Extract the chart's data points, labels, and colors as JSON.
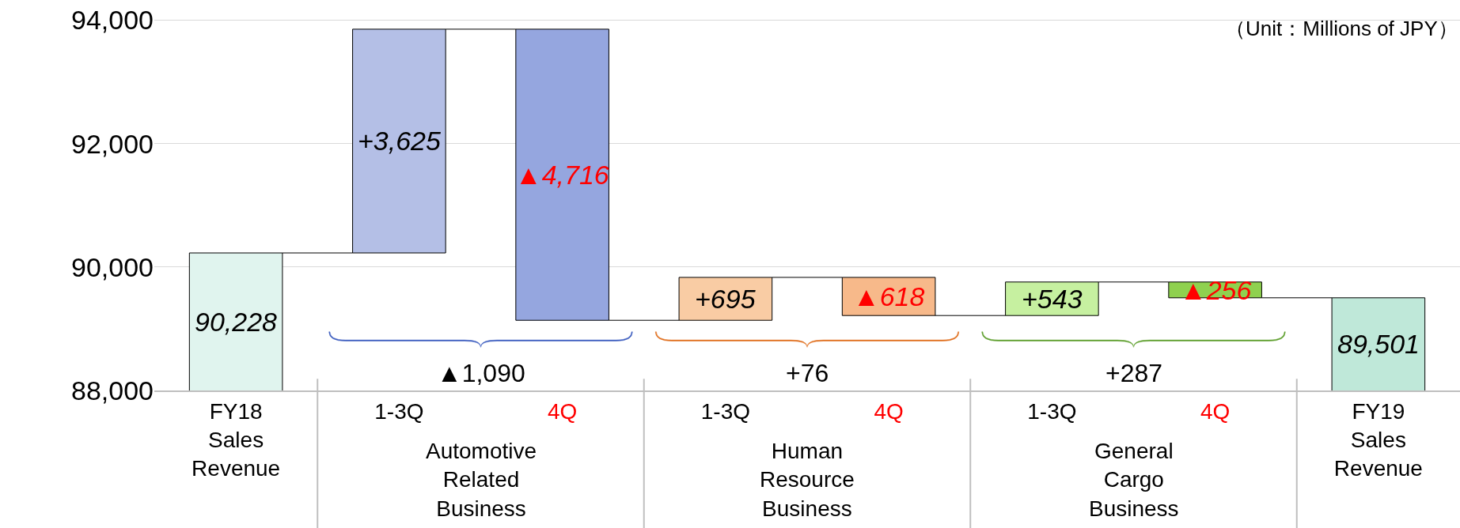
{
  "chart_data": {
    "type": "bar",
    "categories": [
      "FY18\nSales\nRevenue",
      "1-3Q",
      "4Q",
      "1-3Q",
      "4Q",
      "1-3Q",
      "4Q",
      "FY19\nSales\nRevenue"
    ],
    "values": [
      90228,
      3625,
      -4716,
      695,
      -618,
      543,
      -256,
      89501
    ],
    "base": [
      null,
      90228,
      93853,
      89137,
      89832,
      89214,
      89757,
      null
    ],
    "colors": [
      "#e0f4ee",
      "#b4bfe6",
      "#95a6df",
      "#f9cca4",
      "#f7b98a",
      "#c6f0a0",
      "#8fd14f",
      "#bfe8d9"
    ],
    "value_labels": [
      "90,228",
      "+3,625",
      "▲4,716",
      "+695",
      "▲618",
      "+543",
      "▲256",
      "89,501"
    ],
    "ylim": [
      88000,
      94300
    ],
    "yticks": [
      {
        "value": 88000,
        "label": "88,000"
      },
      {
        "value": 90000,
        "label": "90,000"
      },
      {
        "value": 92000,
        "label": "92,000"
      },
      {
        "value": 94000,
        "label": "94,000"
      }
    ],
    "grid": "y",
    "annotations": [
      "（Unit：Millions of JPY）",
      "▲1,090",
      "+76",
      "+287",
      "Automotive\nRelated\nBusiness",
      "Human\nResource\nBusiness",
      "General\nCargo\nBusiness"
    ]
  }
}
